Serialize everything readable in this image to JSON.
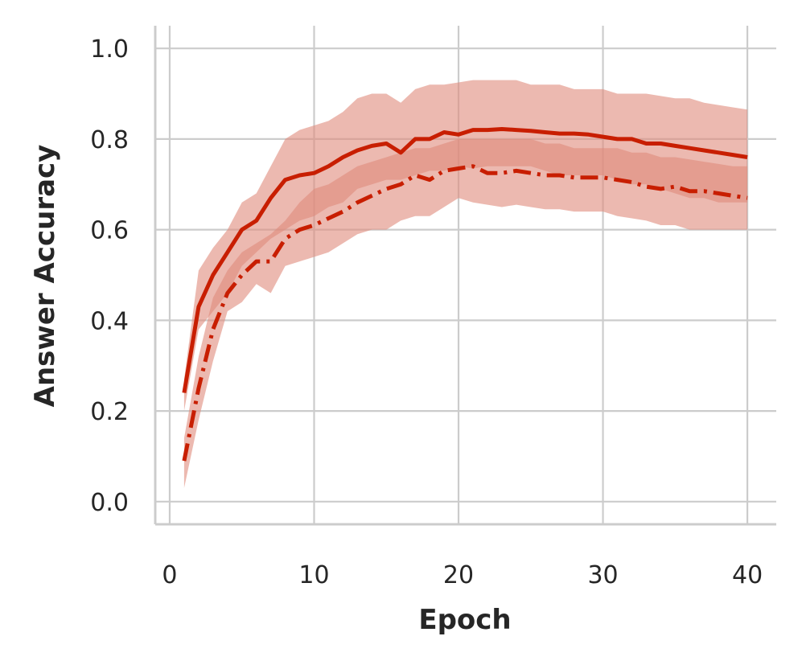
{
  "chart_data": {
    "type": "line",
    "title": "",
    "xlabel": "Epoch",
    "ylabel": "Answer Accuracy",
    "xlim": [
      -1,
      42
    ],
    "ylim": [
      -0.05,
      1.05
    ],
    "xticks": [
      0,
      10,
      20,
      30,
      40
    ],
    "xtick_labels": [
      "0",
      "10",
      "20",
      "30",
      "40"
    ],
    "yticks": [
      0.0,
      0.2,
      0.4,
      0.6,
      0.8,
      1.0
    ],
    "ytick_labels": [
      "0.0",
      "0.2",
      "0.4",
      "0.6",
      "0.8",
      "1.0"
    ],
    "grid": true,
    "legend": "none",
    "colors": {
      "line": "#c81e00",
      "band": "#e08a7c",
      "band_opacity": 0.6,
      "grid": "#cccccc",
      "spine": "#cccccc",
      "text": "#262626"
    },
    "x": [
      1,
      2,
      3,
      4,
      5,
      6,
      7,
      8,
      9,
      10,
      11,
      12,
      13,
      14,
      15,
      16,
      17,
      18,
      19,
      20,
      21,
      22,
      23,
      24,
      25,
      26,
      27,
      28,
      29,
      30,
      31,
      32,
      33,
      34,
      35,
      36,
      37,
      38,
      39,
      40
    ],
    "series": [
      {
        "style": "solid",
        "values": [
          0.24,
          0.43,
          0.5,
          0.55,
          0.6,
          0.62,
          0.67,
          0.71,
          0.72,
          0.725,
          0.74,
          0.76,
          0.775,
          0.785,
          0.79,
          0.77,
          0.8,
          0.8,
          0.815,
          0.81,
          0.82,
          0.82,
          0.822,
          0.82,
          0.818,
          0.815,
          0.812,
          0.812,
          0.81,
          0.805,
          0.8,
          0.8,
          0.79,
          0.79,
          0.785,
          0.78,
          0.775,
          0.77,
          0.765,
          0.76
        ],
        "lower": [
          0.2,
          0.38,
          0.42,
          0.46,
          0.52,
          0.55,
          0.58,
          0.6,
          0.62,
          0.63,
          0.65,
          0.66,
          0.69,
          0.7,
          0.71,
          0.71,
          0.72,
          0.73,
          0.73,
          0.74,
          0.735,
          0.74,
          0.74,
          0.74,
          0.74,
          0.73,
          0.72,
          0.72,
          0.72,
          0.72,
          0.71,
          0.7,
          0.7,
          0.69,
          0.68,
          0.67,
          0.67,
          0.66,
          0.66,
          0.66
        ],
        "upper": [
          0.27,
          0.51,
          0.56,
          0.6,
          0.66,
          0.68,
          0.74,
          0.8,
          0.82,
          0.83,
          0.84,
          0.86,
          0.89,
          0.9,
          0.9,
          0.88,
          0.91,
          0.92,
          0.92,
          0.925,
          0.93,
          0.93,
          0.93,
          0.93,
          0.92,
          0.92,
          0.92,
          0.91,
          0.91,
          0.91,
          0.9,
          0.9,
          0.9,
          0.895,
          0.89,
          0.89,
          0.88,
          0.875,
          0.87,
          0.865
        ]
      },
      {
        "style": "dashdot",
        "values": [
          0.09,
          0.25,
          0.38,
          0.46,
          0.5,
          0.53,
          0.53,
          0.58,
          0.6,
          0.61,
          0.625,
          0.64,
          0.66,
          0.675,
          0.69,
          0.7,
          0.72,
          0.71,
          0.73,
          0.735,
          0.74,
          0.725,
          0.725,
          0.73,
          0.725,
          0.72,
          0.72,
          0.715,
          0.715,
          0.715,
          0.71,
          0.705,
          0.695,
          0.69,
          0.695,
          0.685,
          0.685,
          0.68,
          0.675,
          0.67
        ],
        "lower": [
          0.03,
          0.18,
          0.31,
          0.42,
          0.44,
          0.48,
          0.46,
          0.52,
          0.53,
          0.54,
          0.55,
          0.57,
          0.59,
          0.6,
          0.6,
          0.62,
          0.63,
          0.63,
          0.65,
          0.67,
          0.66,
          0.655,
          0.65,
          0.655,
          0.65,
          0.645,
          0.645,
          0.64,
          0.64,
          0.64,
          0.63,
          0.625,
          0.62,
          0.61,
          0.61,
          0.6,
          0.6,
          0.6,
          0.6,
          0.6
        ],
        "upper": [
          0.14,
          0.32,
          0.45,
          0.51,
          0.55,
          0.57,
          0.59,
          0.62,
          0.66,
          0.69,
          0.7,
          0.72,
          0.74,
          0.75,
          0.76,
          0.77,
          0.78,
          0.78,
          0.79,
          0.8,
          0.8,
          0.8,
          0.8,
          0.8,
          0.8,
          0.79,
          0.79,
          0.78,
          0.78,
          0.78,
          0.78,
          0.77,
          0.77,
          0.76,
          0.76,
          0.755,
          0.75,
          0.745,
          0.74,
          0.74
        ]
      }
    ]
  }
}
